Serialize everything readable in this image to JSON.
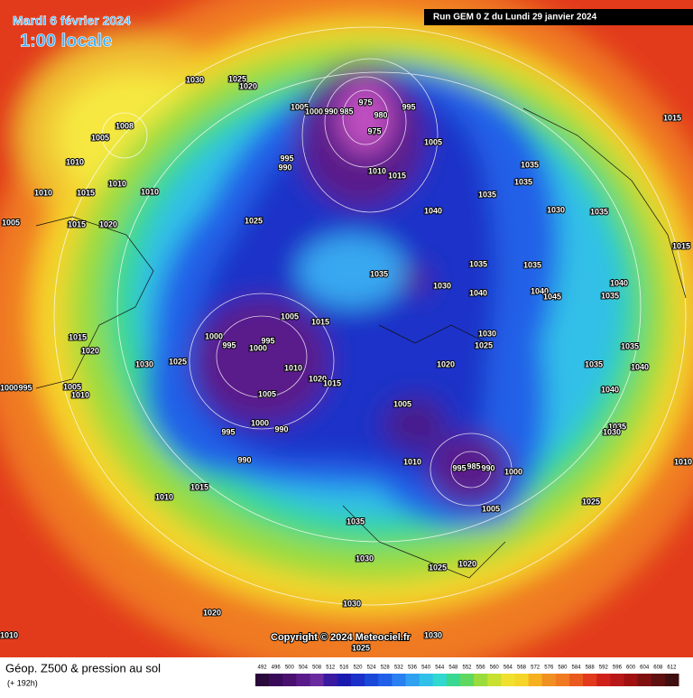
{
  "header": {
    "date": "Mardi 6 février 2024",
    "time": "1:00 locale",
    "run": "Run GEM 0 Z du Lundi 29 janvier 2024"
  },
  "copyright": "Copyright © 2024 Meteociel.fr",
  "footer": {
    "title": "Géop. Z500 & pression au sol",
    "lead": "(+ 192h)"
  },
  "legend": {
    "ticks": [
      492,
      496,
      500,
      504,
      508,
      512,
      516,
      520,
      524,
      528,
      532,
      536,
      540,
      544,
      548,
      552,
      556,
      560,
      564,
      568,
      572,
      576,
      580,
      584,
      588,
      592,
      596,
      600,
      604,
      608,
      612
    ]
  },
  "isobar_labels": [
    "1030",
    "1025",
    "1020",
    "1005",
    "1000",
    "990",
    "985",
    "975",
    "980",
    "995",
    "975",
    "1005",
    "995",
    "990",
    "1010",
    "1015",
    "1008",
    "1005",
    "1010",
    "1010",
    "1015",
    "1010",
    "1010",
    "1005",
    "1015",
    "1020",
    "1025",
    "1040",
    "1035",
    "1035",
    "1035",
    "1030",
    "1035",
    "1015",
    "1015",
    "1035",
    "1030",
    "1035",
    "1035",
    "1040",
    "1040",
    "1045",
    "1035",
    "1040",
    "1005",
    "1015",
    "1000",
    "995",
    "1000",
    "995",
    "1010",
    "1020",
    "1015",
    "1030",
    "1025",
    "1020",
    "1015",
    "1020",
    "1030",
    "1025",
    "1035",
    "1035",
    "1040",
    "1000",
    "995",
    "1005",
    "1010",
    "1005",
    "1005",
    "1040",
    "1035",
    "1030",
    "1000",
    "995",
    "990",
    "990",
    "1010",
    "995",
    "985",
    "990",
    "1000",
    "1005",
    "1010",
    "1015",
    "1025",
    "1035",
    "1030",
    "1025",
    "1020",
    "1030",
    "1020",
    "1010",
    "1030",
    "1025",
    "1010"
  ]
}
